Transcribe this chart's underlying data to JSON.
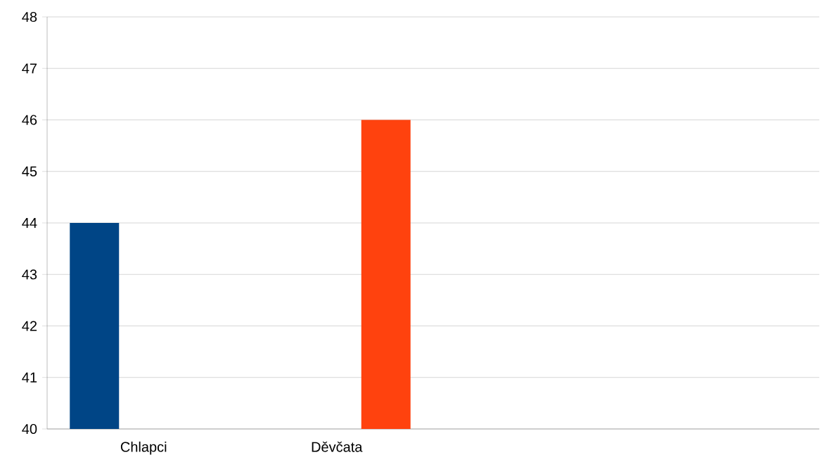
{
  "chart_data": {
    "type": "bar",
    "categories": [
      "Chlapci",
      "Děvčata",
      null,
      null
    ],
    "series": [
      {
        "color": "#004586",
        "values": [
          44,
          null,
          null,
          null
        ]
      },
      {
        "color": "#ff420e",
        "values": [
          null,
          46,
          null,
          null
        ]
      }
    ],
    "ylim": [
      40,
      48
    ],
    "yticks": [
      40,
      41,
      42,
      43,
      44,
      45,
      46,
      47,
      48
    ],
    "grid": "y"
  }
}
